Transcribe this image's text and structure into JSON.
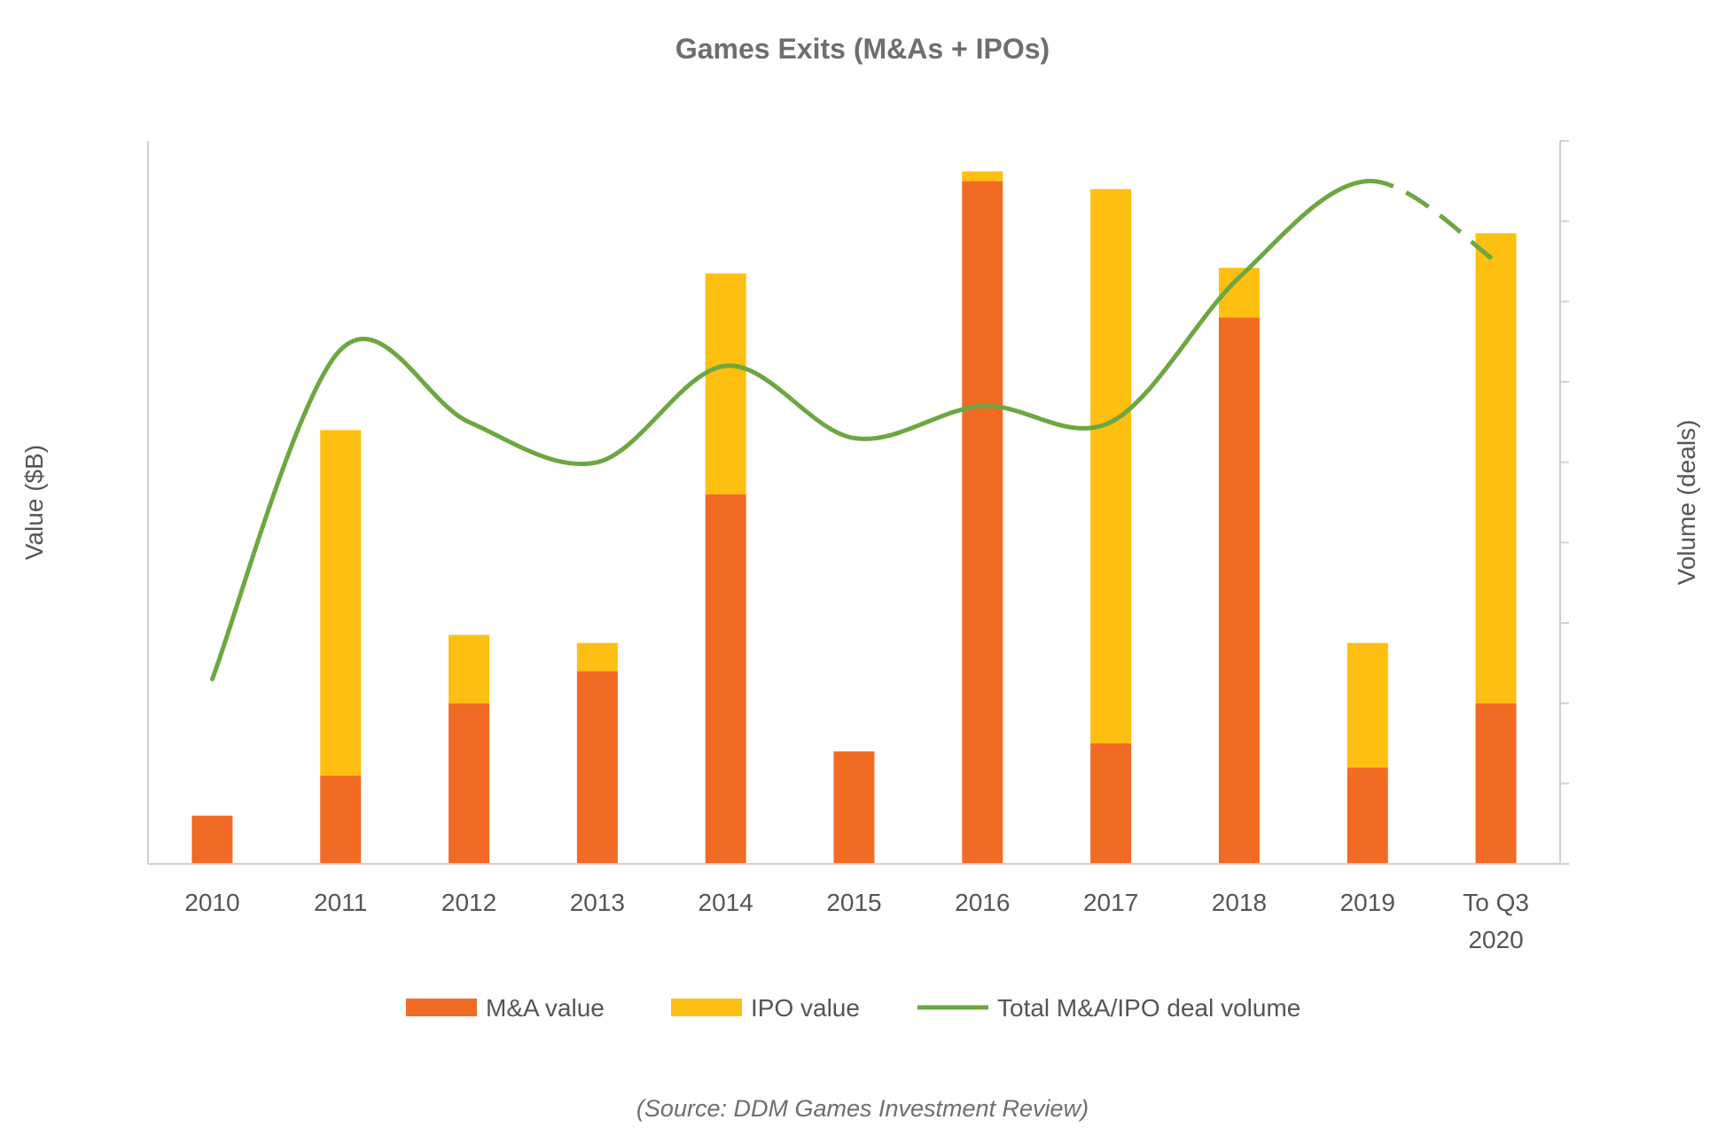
{
  "chart_data": {
    "type": "bar",
    "stacked": true,
    "title": "Games Exits (M&As + IPOs)",
    "ylabel": "Value ($B)",
    "y2label": "Volume (deals)",
    "categories": [
      "2010",
      "2011",
      "2012",
      "2013",
      "2014",
      "2015",
      "2016",
      "2017",
      "2018",
      "2019",
      "To Q3 2020"
    ],
    "series": [
      {
        "name": "M&A value",
        "type": "bar",
        "color": "#f26b24",
        "values": [
          0.6,
          1.1,
          2.0,
          2.4,
          4.6,
          1.4,
          8.5,
          1.5,
          6.8,
          1.2,
          2.0
        ]
      },
      {
        "name": "IPO value",
        "type": "bar",
        "color": "#fdbf12",
        "values": [
          0.0,
          4.3,
          0.85,
          0.35,
          2.75,
          0.0,
          0.12,
          6.9,
          0.62,
          1.55,
          5.85
        ]
      },
      {
        "name": "Total M&A/IPO deal volume",
        "type": "line",
        "axis": "right",
        "color": "#6ca741",
        "style": "smooth",
        "dashed_segment": [
          "2019",
          "To Q3 2020"
        ],
        "values": [
          23,
          64,
          55,
          50,
          62,
          53,
          57,
          55,
          73,
          85,
          75
        ]
      }
    ],
    "ylim": [
      0,
      9
    ],
    "y2lim": [
      0,
      90
    ],
    "yticks_shown": false,
    "y2ticks_shown": false,
    "legend_position": "bottom",
    "grid": false
  },
  "source_note": "(Source: DDM Games Investment Review)"
}
